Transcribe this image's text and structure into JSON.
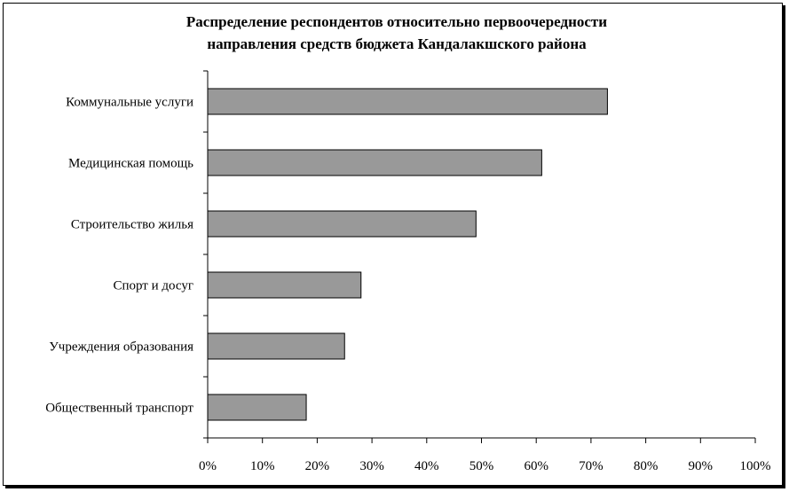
{
  "chart_data": {
    "type": "bar",
    "orientation": "horizontal",
    "title_lines": [
      "Распределение респондентов относительно первоочередности",
      "направления средств бюджета Кандалакшского района"
    ],
    "categories": [
      "Коммунальные услуги",
      "Медицинская помощь",
      "Строительство жилья",
      "Спорт и досуг",
      "Учреждения образования",
      "Общественный транспорт"
    ],
    "values": [
      0.73,
      0.61,
      0.49,
      0.28,
      0.25,
      0.18
    ],
    "xlim": [
      0,
      1
    ],
    "x_ticks": [
      0,
      0.1,
      0.2,
      0.3,
      0.4,
      0.5,
      0.6,
      0.7,
      0.8,
      0.9,
      1.0
    ],
    "x_tick_labels": [
      "0%",
      "10%",
      "20%",
      "30%",
      "40%",
      "50%",
      "60%",
      "70%",
      "80%",
      "90%",
      "100%"
    ],
    "grid": false,
    "legend": "none",
    "bar_color": "#999999"
  }
}
